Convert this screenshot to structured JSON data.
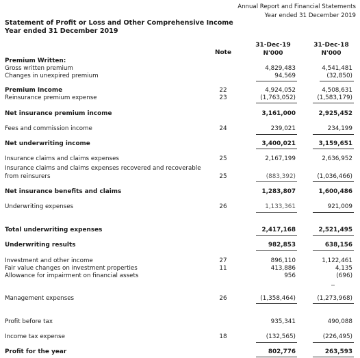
{
  "report_header": {
    "line1": "Annual Report and Financial Statements",
    "line2": "Year  ended 31 December 2019"
  },
  "title": {
    "line1": "Statement of Profit or Loss and Other Comprehensive Income",
    "line2": "Year ended 31 December 2019"
  },
  "columns": {
    "note": "Note",
    "col1_date": "31-Dec-19",
    "col1_unit": "N'000",
    "col2_date": "31-Dec-18",
    "col2_unit": "N'000"
  },
  "rows": {
    "premium_written": "Premium Written:",
    "gross_written": {
      "label": "Gross written premium",
      "v19": "4,829,483",
      "v18": "4,541,481"
    },
    "changes_unexpired": {
      "label": "Changes in unexpired premium",
      "v19": "94,569",
      "v18": "(32,850)"
    },
    "premium_income": {
      "label": "Premium Income",
      "note": "22",
      "v19": "4,924,052",
      "v18": "4,508,631"
    },
    "reinsurance_expense": {
      "label": "Reinsurance premium expense",
      "note": "23",
      "v19": "(1,763,052)",
      "v18": "(1,583,179)"
    },
    "net_insurance_premium": {
      "label": "Net insurance premium income",
      "v19": "3,161,000",
      "v18": "2,925,452"
    },
    "fees_commission": {
      "label": "Fees and commission income",
      "note": "24",
      "v19": "239,021",
      "v18": "234,199"
    },
    "net_underwriting": {
      "label": "Net underwriting income",
      "v19": "3,400,021",
      "v18": "3,159,651"
    },
    "claims_expenses": {
      "label": "Insurance claims and claims expenses",
      "note": "25",
      "v19": "2,167,199",
      "v18": "2,636,952"
    },
    "claims_recovered": {
      "label1": "Insurance claims and claims expenses recovered and recoverable",
      "label2": "from reinsurers",
      "note": "25",
      "v19": "(883,392)",
      "v18": "(1,036,466)"
    },
    "net_benefits": {
      "label": "Net insurance benefits and claims",
      "v19": "1,283,807",
      "v18": "1,600,486"
    },
    "underwriting_expenses": {
      "label": "Underwriting expenses",
      "note": "26",
      "v19": "1,133,361",
      "v18": "921,009"
    },
    "total_underwriting": {
      "label": "Total underwriting expenses",
      "v19": "2,417,168",
      "v18": "2,521,495"
    },
    "underwriting_results": {
      "label": "Underwriting results",
      "v19": "982,853",
      "v18": "638,156"
    },
    "investment_income": {
      "label": "Investment and other income",
      "note": "27",
      "v19": "896,110",
      "v18": "1,122,461"
    },
    "fair_value": {
      "label": "Fair value changes on investment properties",
      "note": "11",
      "v19": "413,886",
      "v18": "4,135"
    },
    "impairment": {
      "label": "Allowance for impairment on financial assets",
      "v19": "956",
      "v18": "(696)"
    },
    "management_expenses": {
      "label": "Management expenses",
      "note": "26",
      "v19": "(1,358,464)",
      "v18": "(1,273,968)"
    },
    "profit_before_tax": {
      "label": "Profit before tax",
      "v19": "935,341",
      "v18": "490,088"
    },
    "income_tax": {
      "label": "Income tax expense",
      "note": "18",
      "v19": "(132,565)",
      "v18": "(226,495)"
    },
    "profit_for_year": {
      "label": "Profit for the year",
      "v19": "802,776",
      "v18": "263,593"
    }
  }
}
